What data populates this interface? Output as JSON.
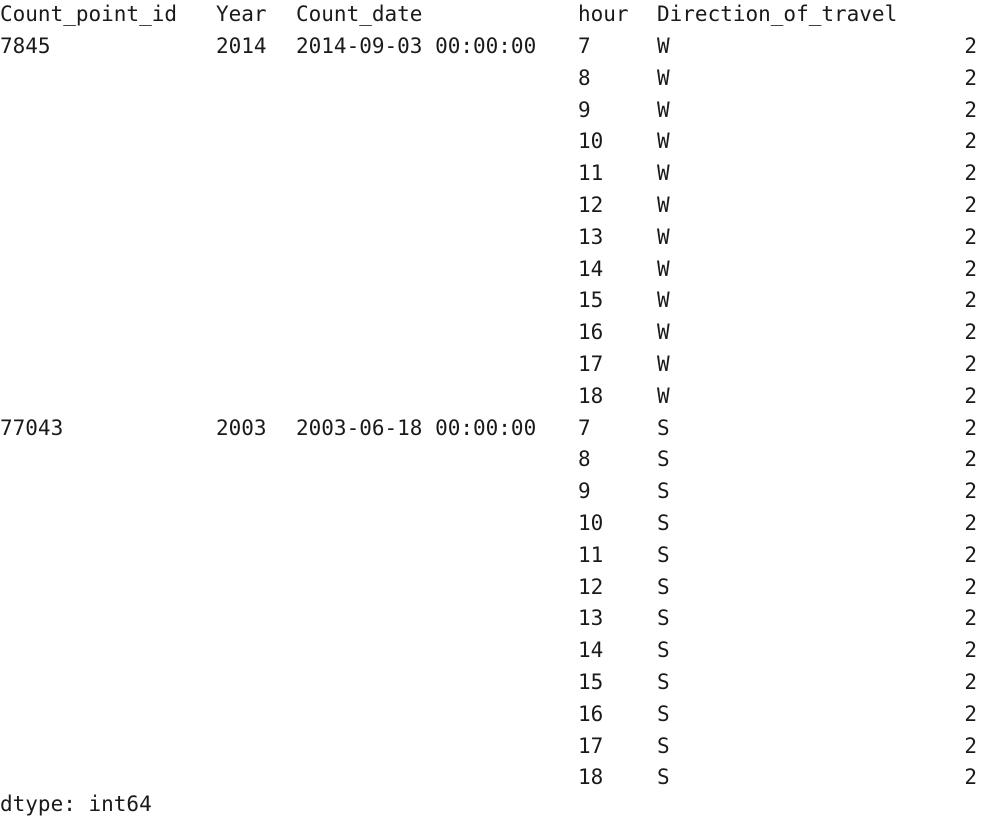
{
  "header": {
    "count_point_id": "Count_point_id",
    "year": "Year",
    "count_date": "Count_date",
    "hour": "hour",
    "direction": "Direction_of_travel"
  },
  "rows": [
    {
      "count_point_id": "7845",
      "year": "2014",
      "count_date": "2014-09-03 00:00:00",
      "hour": "7",
      "direction": "W",
      "value": "2"
    },
    {
      "count_point_id": "",
      "year": "",
      "count_date": "",
      "hour": "8",
      "direction": "W",
      "value": "2"
    },
    {
      "count_point_id": "",
      "year": "",
      "count_date": "",
      "hour": "9",
      "direction": "W",
      "value": "2"
    },
    {
      "count_point_id": "",
      "year": "",
      "count_date": "",
      "hour": "10",
      "direction": "W",
      "value": "2"
    },
    {
      "count_point_id": "",
      "year": "",
      "count_date": "",
      "hour": "11",
      "direction": "W",
      "value": "2"
    },
    {
      "count_point_id": "",
      "year": "",
      "count_date": "",
      "hour": "12",
      "direction": "W",
      "value": "2"
    },
    {
      "count_point_id": "",
      "year": "",
      "count_date": "",
      "hour": "13",
      "direction": "W",
      "value": "2"
    },
    {
      "count_point_id": "",
      "year": "",
      "count_date": "",
      "hour": "14",
      "direction": "W",
      "value": "2"
    },
    {
      "count_point_id": "",
      "year": "",
      "count_date": "",
      "hour": "15",
      "direction": "W",
      "value": "2"
    },
    {
      "count_point_id": "",
      "year": "",
      "count_date": "",
      "hour": "16",
      "direction": "W",
      "value": "2"
    },
    {
      "count_point_id": "",
      "year": "",
      "count_date": "",
      "hour": "17",
      "direction": "W",
      "value": "2"
    },
    {
      "count_point_id": "",
      "year": "",
      "count_date": "",
      "hour": "18",
      "direction": "W",
      "value": "2"
    },
    {
      "count_point_id": "77043",
      "year": "2003",
      "count_date": "2003-06-18 00:00:00",
      "hour": "7",
      "direction": "S",
      "value": "2"
    },
    {
      "count_point_id": "",
      "year": "",
      "count_date": "",
      "hour": "8",
      "direction": "S",
      "value": "2"
    },
    {
      "count_point_id": "",
      "year": "",
      "count_date": "",
      "hour": "9",
      "direction": "S",
      "value": "2"
    },
    {
      "count_point_id": "",
      "year": "",
      "count_date": "",
      "hour": "10",
      "direction": "S",
      "value": "2"
    },
    {
      "count_point_id": "",
      "year": "",
      "count_date": "",
      "hour": "11",
      "direction": "S",
      "value": "2"
    },
    {
      "count_point_id": "",
      "year": "",
      "count_date": "",
      "hour": "12",
      "direction": "S",
      "value": "2"
    },
    {
      "count_point_id": "",
      "year": "",
      "count_date": "",
      "hour": "13",
      "direction": "S",
      "value": "2"
    },
    {
      "count_point_id": "",
      "year": "",
      "count_date": "",
      "hour": "14",
      "direction": "S",
      "value": "2"
    },
    {
      "count_point_id": "",
      "year": "",
      "count_date": "",
      "hour": "15",
      "direction": "S",
      "value": "2"
    },
    {
      "count_point_id": "",
      "year": "",
      "count_date": "",
      "hour": "16",
      "direction": "S",
      "value": "2"
    },
    {
      "count_point_id": "",
      "year": "",
      "count_date": "",
      "hour": "17",
      "direction": "S",
      "value": "2"
    },
    {
      "count_point_id": "",
      "year": "",
      "count_date": "",
      "hour": "18",
      "direction": "S",
      "value": "2"
    }
  ],
  "footer": {
    "dtype": "dtype: int64"
  }
}
